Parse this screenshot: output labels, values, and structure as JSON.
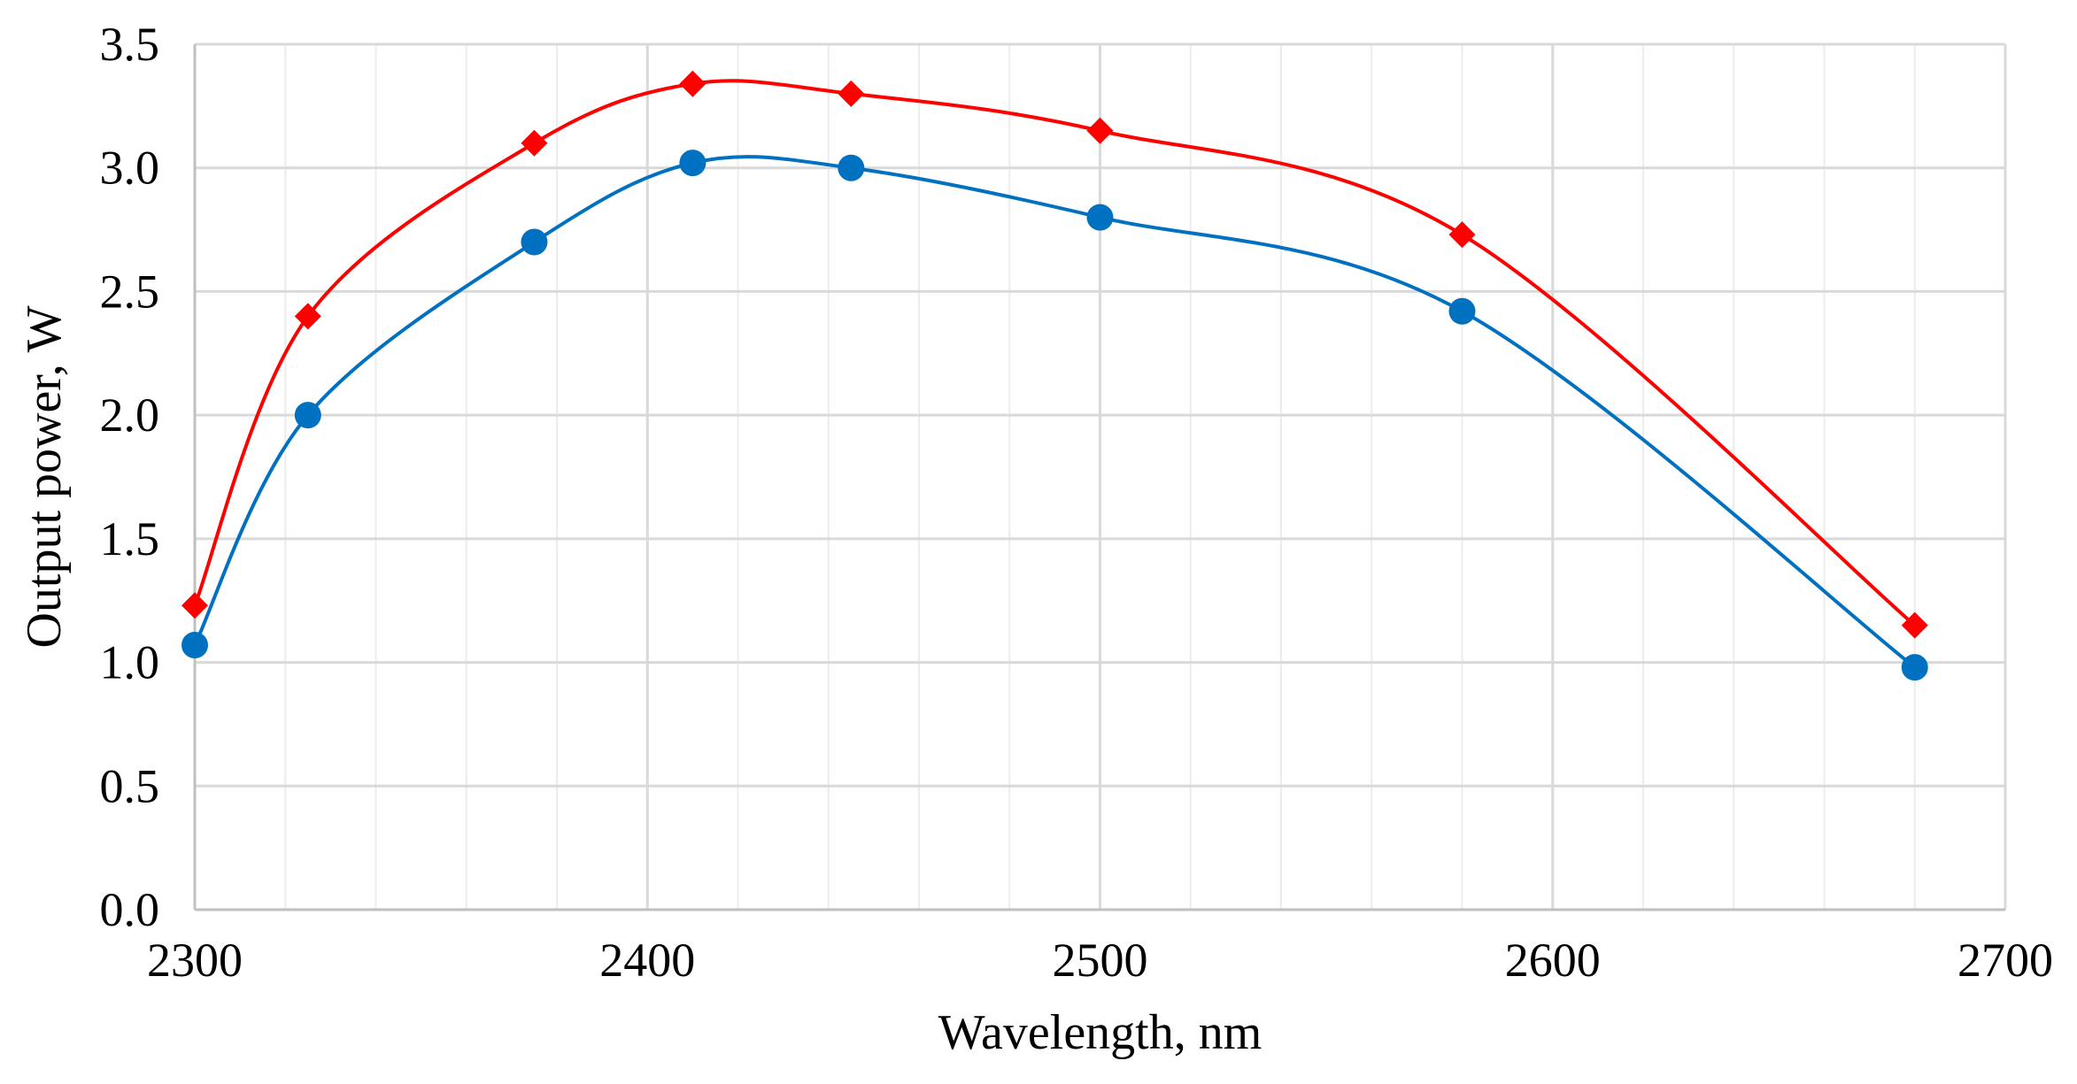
{
  "chart_data": {
    "type": "scatter",
    "title": "",
    "xlabel": "Wavelength, nm",
    "ylabel": "Output power, W",
    "xlim": [
      2300,
      2700
    ],
    "ylim": [
      0.0,
      3.5
    ],
    "x_major_ticks": [
      2300,
      2400,
      2500,
      2600,
      2700
    ],
    "x_tick_labels": [
      "2300",
      "2400",
      "2500",
      "2600",
      "2700"
    ],
    "x_minor_step": 20,
    "y_major_ticks": [
      0.0,
      0.5,
      1.0,
      1.5,
      2.0,
      2.5,
      3.0,
      3.5
    ],
    "y_tick_labels": [
      "0.0",
      "0.5",
      "1.0",
      "1.5",
      "2.0",
      "2.5",
      "3.0",
      "3.5"
    ],
    "grid": true,
    "legend": "none",
    "series": [
      {
        "marker": "diamond",
        "color": "#ff0000",
        "trendline": "smooth",
        "x": [
          2300,
          2325,
          2375,
          2410,
          2445,
          2500,
          2580,
          2680
        ],
        "y": [
          1.23,
          2.4,
          3.1,
          3.34,
          3.3,
          3.15,
          2.73,
          1.15
        ]
      },
      {
        "marker": "circle",
        "color": "#0070c0",
        "trendline": "smooth",
        "x": [
          2300,
          2325,
          2375,
          2410,
          2445,
          2500,
          2580,
          2680
        ],
        "y": [
          1.07,
          2.0,
          2.7,
          3.02,
          3.0,
          2.8,
          2.42,
          0.98
        ]
      }
    ]
  }
}
